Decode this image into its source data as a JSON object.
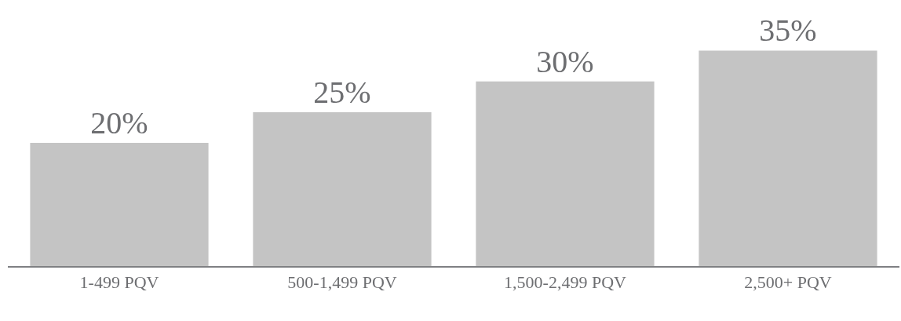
{
  "chart_data": {
    "type": "bar",
    "categories": [
      "1-499 PQV",
      "500-1,499 PQV",
      "1,500-2,499 PQV",
      "2,500+ PQV"
    ],
    "values": [
      20,
      25,
      30,
      35
    ],
    "color": "#c4c4c4",
    "data_labels": true,
    "value_labels": [
      "20%",
      "25%",
      "30%",
      "35%"
    ]
  }
}
